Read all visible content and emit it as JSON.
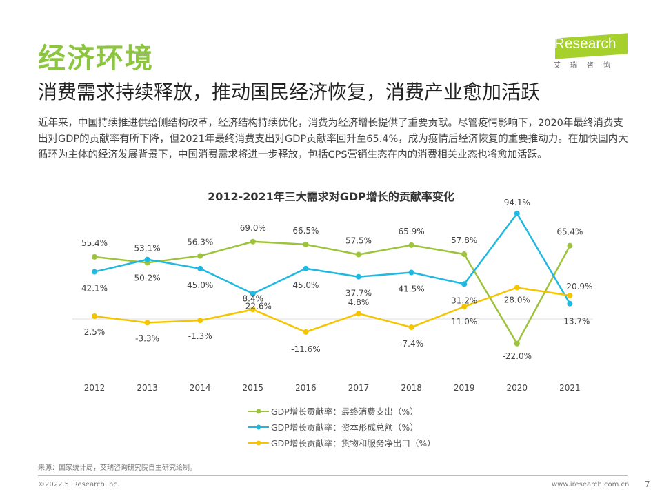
{
  "header": {
    "title": "经济环境",
    "subtitle": "消费需求持续释放，推动国民经济恢复，消费产业愈加活跃",
    "body": "近年来，中国持续推进供给侧结构改革，经济结构持续优化，消费为经济增长提供了重要贡献。尽管疫情影响下，2020年最终消费支出对GDP的贡献率有所下降，但2021年最终消费支出对GDP贡献率回升至65.4%，成为疫情后经济恢复的重要推动力。在加快国内大循环为主体的经济发展背景下，中国消费需求将进一步释放，包括CPS营销生态在内的消费相关业态也将愈加活跃。"
  },
  "logo": {
    "text": "iResearch",
    "cn": "艾瑞咨询",
    "color": "#a6d02b"
  },
  "chart_data": {
    "type": "line",
    "title": "2012-2021年三大需求对GDP增长的贡献率变化",
    "categories": [
      "2012",
      "2013",
      "2014",
      "2015",
      "2016",
      "2017",
      "2018",
      "2019",
      "2020",
      "2021"
    ],
    "unit": "%",
    "ylim": [
      -25,
      100
    ],
    "grid": false,
    "legend_placement": "bottom",
    "series": [
      {
        "name": "GDP增长贡献率：最终消费支出（%）",
        "color": "#9dc33b",
        "values": [
          55.4,
          50.2,
          56.3,
          69.0,
          66.5,
          57.5,
          65.9,
          57.8,
          -22.0,
          65.4
        ]
      },
      {
        "name": "GDP增长贡献率：资本形成总额（%）",
        "color": "#1fb8e0",
        "values": [
          42.1,
          53.1,
          45.0,
          22.6,
          45.0,
          37.7,
          41.5,
          31.2,
          94.1,
          13.7
        ]
      },
      {
        "name": "GDP增长贡献率：货物和服务净出口（%）",
        "color": "#f5c400",
        "values": [
          2.5,
          -3.3,
          -1.3,
          8.4,
          -11.6,
          4.8,
          -7.4,
          11.0,
          28.0,
          20.9
        ]
      }
    ]
  },
  "footer": {
    "source": "来源：国家统计局，艾瑞咨询研究院自主研究绘制。",
    "copyright": "©2022.5 iResearch Inc.",
    "site": "www.iresearch.com.cn",
    "page": "7"
  }
}
